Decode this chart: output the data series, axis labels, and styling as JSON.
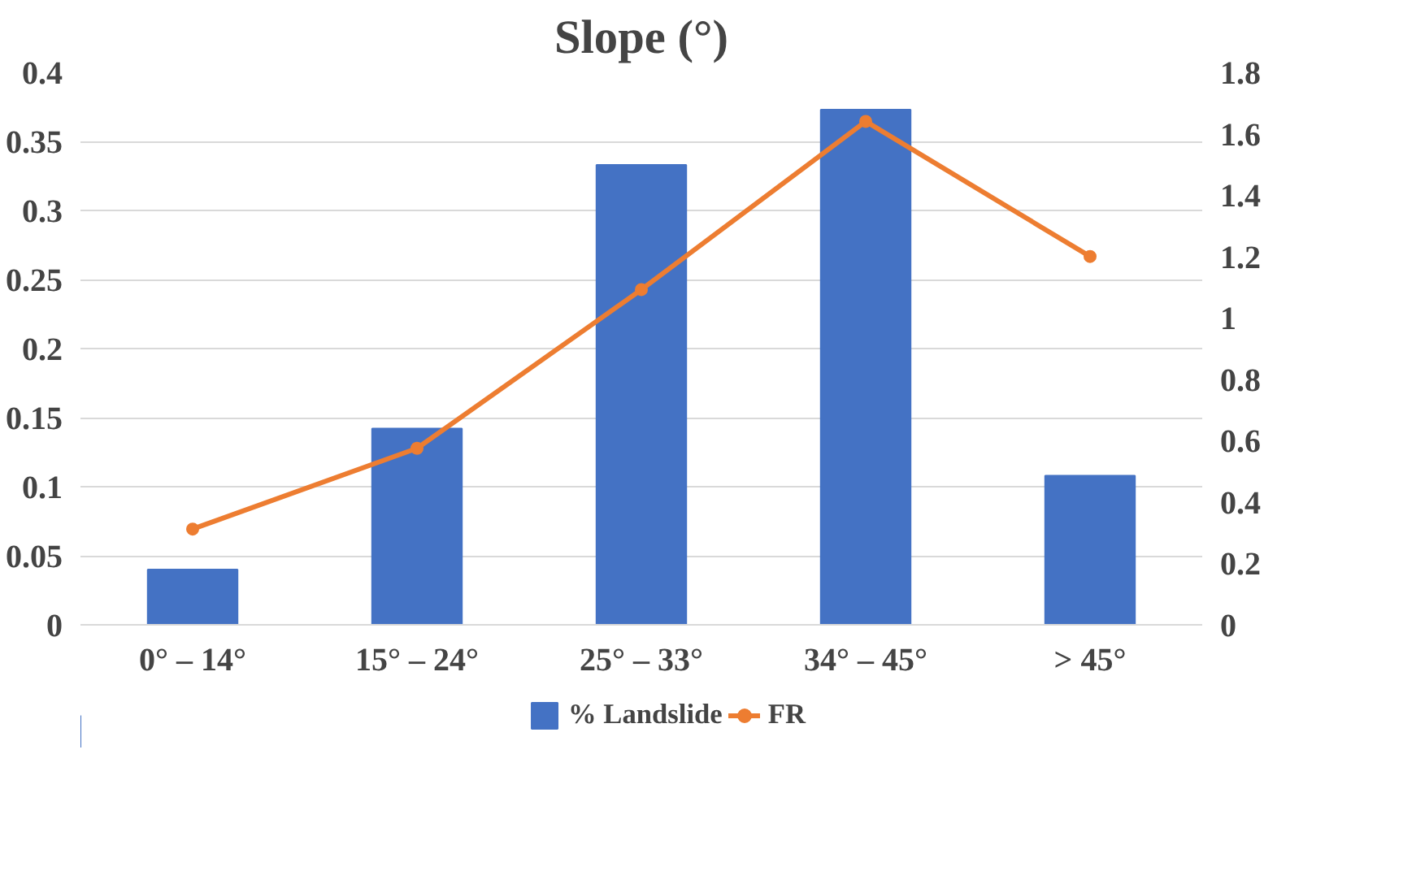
{
  "chart_data": {
    "type": "bar",
    "title": "Slope (°)",
    "categories": [
      "0° – 14°",
      "15° – 24°",
      "25° – 33°",
      "34° – 45°",
      "> 45°"
    ],
    "series": [
      {
        "name": "% Landslide",
        "color": "#4472c4",
        "values": [
          0.04,
          0.142,
          0.333,
          0.373,
          0.108
        ]
      },
      {
        "name": "FR",
        "color": "#ed7d31",
        "type": "line",
        "axis": "y2",
        "values": [
          0.312,
          0.575,
          1.092,
          1.64,
          1.2
        ]
      }
    ],
    "ylim": [
      0,
      0.4
    ],
    "yticks": [
      0,
      0.05,
      0.1,
      0.15,
      0.2,
      0.25,
      0.3,
      0.35,
      0.4
    ],
    "y2lim": [
      0,
      1.8
    ],
    "y2ticks": [
      0,
      0.2,
      0.4,
      0.6,
      0.8,
      1,
      1.2,
      1.4,
      1.6,
      1.8
    ],
    "grid": "y",
    "legend": "bottom",
    "marker": "circle",
    "line_style": "solid"
  }
}
